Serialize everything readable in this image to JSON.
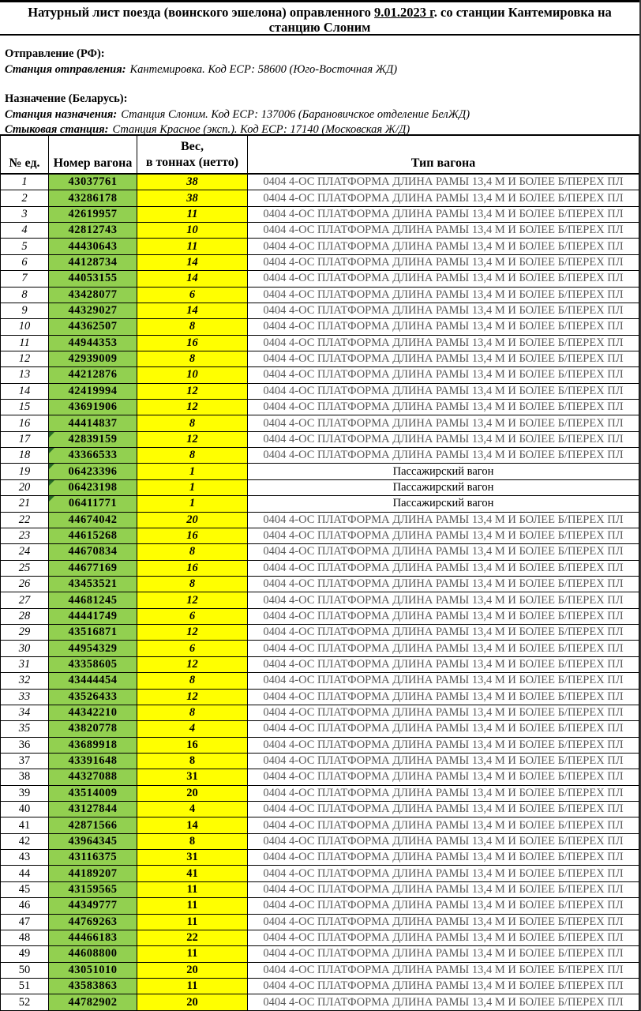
{
  "title": {
    "prefix": "Натурный лист поезда (воинского эшелона) оправленного ",
    "date": "9.01.2023 г",
    "suffix": ". со станции Кантемировка  на станцию Слоним"
  },
  "info": {
    "departure_header": "Отправление (РФ):",
    "departure_station_label": "Станция отправления:",
    "departure_station_value": "Кантемировка. Код ЕСР: 58600 (Юго-Восточная ЖД)",
    "destination_header": "Назначение (Беларусь):",
    "destination_station_label": "Станция назначения:",
    "destination_station_value": "Станция Слоним. Код ЕСР: 137006 (Барановичское отделение БелЖД)",
    "junction_station_label": "Стыковая станция:",
    "junction_station_value": "Станция Красное (эксп.). Код ЕСР: 17140 (Московская Ж/Д)"
  },
  "table": {
    "headers": {
      "unit": "№ ед.",
      "wagon": "Номер вагона",
      "weight_line1": "Вес,",
      "weight_line2": "в тоннах (нетто)",
      "type": "Тип вагона"
    },
    "types": {
      "platform": "0404 4-ОС ПЛАТФОРМА ДЛИНА РАМЫ 13,4 М И БОЛЕЕ Б/ПЕРЕХ ПЛ",
      "passenger": "Пассажирский вагон"
    },
    "italic_number_rows": 35,
    "colors": {
      "wagon_cell_bg": "#92D050",
      "weight_cell_bg": "#FFFF00",
      "type_text_gray": "#595959",
      "comment_marker_green": "#276B27"
    },
    "rows": [
      {
        "n": 1,
        "wagon": "43037761",
        "weight": 38,
        "type": "platform"
      },
      {
        "n": 2,
        "wagon": "43286178",
        "weight": 38,
        "type": "platform"
      },
      {
        "n": 3,
        "wagon": "42619957",
        "weight": 11,
        "type": "platform"
      },
      {
        "n": 4,
        "wagon": "42812743",
        "weight": 10,
        "type": "platform"
      },
      {
        "n": 5,
        "wagon": "44430643",
        "weight": 11,
        "type": "platform"
      },
      {
        "n": 6,
        "wagon": "44128734",
        "weight": 14,
        "type": "platform"
      },
      {
        "n": 7,
        "wagon": "44053155",
        "weight": 14,
        "type": "platform"
      },
      {
        "n": 8,
        "wagon": "43428077",
        "weight": 6,
        "type": "platform"
      },
      {
        "n": 9,
        "wagon": "44329027",
        "weight": 14,
        "type": "platform"
      },
      {
        "n": 10,
        "wagon": "44362507",
        "weight": 8,
        "type": "platform"
      },
      {
        "n": 11,
        "wagon": "44944353",
        "weight": 16,
        "type": "platform"
      },
      {
        "n": 12,
        "wagon": "42939009",
        "weight": 8,
        "type": "platform"
      },
      {
        "n": 13,
        "wagon": "44212876",
        "weight": 10,
        "type": "platform"
      },
      {
        "n": 14,
        "wagon": "42419994",
        "weight": 12,
        "type": "platform"
      },
      {
        "n": 15,
        "wagon": "43691906",
        "weight": 12,
        "type": "platform"
      },
      {
        "n": 16,
        "wagon": "44414837",
        "weight": 8,
        "type": "platform"
      },
      {
        "n": 17,
        "wagon": "42839159",
        "weight": 12,
        "type": "platform",
        "marker": true
      },
      {
        "n": 18,
        "wagon": "43366533",
        "weight": 8,
        "type": "platform",
        "marker": true
      },
      {
        "n": 19,
        "wagon": "06423396",
        "weight": 1,
        "type": "passenger",
        "marker": true
      },
      {
        "n": 20,
        "wagon": "06423198",
        "weight": 1,
        "type": "passenger",
        "marker": true
      },
      {
        "n": 21,
        "wagon": "06411771",
        "weight": 1,
        "type": "passenger",
        "marker": true
      },
      {
        "n": 22,
        "wagon": "44674042",
        "weight": 20,
        "type": "platform"
      },
      {
        "n": 23,
        "wagon": "44615268",
        "weight": 16,
        "type": "platform"
      },
      {
        "n": 24,
        "wagon": "44670834",
        "weight": 8,
        "type": "platform"
      },
      {
        "n": 25,
        "wagon": "44677169",
        "weight": 16,
        "type": "platform"
      },
      {
        "n": 26,
        "wagon": "43453521",
        "weight": 8,
        "type": "platform"
      },
      {
        "n": 27,
        "wagon": "44681245",
        "weight": 12,
        "type": "platform"
      },
      {
        "n": 28,
        "wagon": "44441749",
        "weight": 6,
        "type": "platform"
      },
      {
        "n": 29,
        "wagon": "43516871",
        "weight": 12,
        "type": "platform"
      },
      {
        "n": 30,
        "wagon": "44954329",
        "weight": 6,
        "type": "platform"
      },
      {
        "n": 31,
        "wagon": "43358605",
        "weight": 12,
        "type": "platform"
      },
      {
        "n": 32,
        "wagon": "43444454",
        "weight": 8,
        "type": "platform"
      },
      {
        "n": 33,
        "wagon": "43526433",
        "weight": 12,
        "type": "platform"
      },
      {
        "n": 34,
        "wagon": "44342210",
        "weight": 8,
        "type": "platform"
      },
      {
        "n": 35,
        "wagon": "43820778",
        "weight": 4,
        "type": "platform"
      },
      {
        "n": 36,
        "wagon": "43689918",
        "weight": 16,
        "type": "platform"
      },
      {
        "n": 37,
        "wagon": "43391648",
        "weight": 8,
        "type": "platform"
      },
      {
        "n": 38,
        "wagon": "44327088",
        "weight": 31,
        "type": "platform"
      },
      {
        "n": 39,
        "wagon": "43514009",
        "weight": 20,
        "type": "platform"
      },
      {
        "n": 40,
        "wagon": "43127844",
        "weight": 4,
        "type": "platform"
      },
      {
        "n": 41,
        "wagon": "42871566",
        "weight": 14,
        "type": "platform"
      },
      {
        "n": 42,
        "wagon": "43964345",
        "weight": 8,
        "type": "platform"
      },
      {
        "n": 43,
        "wagon": "43116375",
        "weight": 31,
        "type": "platform"
      },
      {
        "n": 44,
        "wagon": "44189207",
        "weight": 41,
        "type": "platform"
      },
      {
        "n": 45,
        "wagon": "43159565",
        "weight": 11,
        "type": "platform"
      },
      {
        "n": 46,
        "wagon": "44349777",
        "weight": 11,
        "type": "platform"
      },
      {
        "n": 47,
        "wagon": "44769263",
        "weight": 11,
        "type": "platform"
      },
      {
        "n": 48,
        "wagon": "44466183",
        "weight": 22,
        "type": "platform"
      },
      {
        "n": 49,
        "wagon": "44608800",
        "weight": 11,
        "type": "platform"
      },
      {
        "n": 50,
        "wagon": "43051010",
        "weight": 20,
        "type": "platform"
      },
      {
        "n": 51,
        "wagon": "43583863",
        "weight": 11,
        "type": "platform"
      },
      {
        "n": 52,
        "wagon": "44782902",
        "weight": 20,
        "type": "platform"
      }
    ]
  }
}
